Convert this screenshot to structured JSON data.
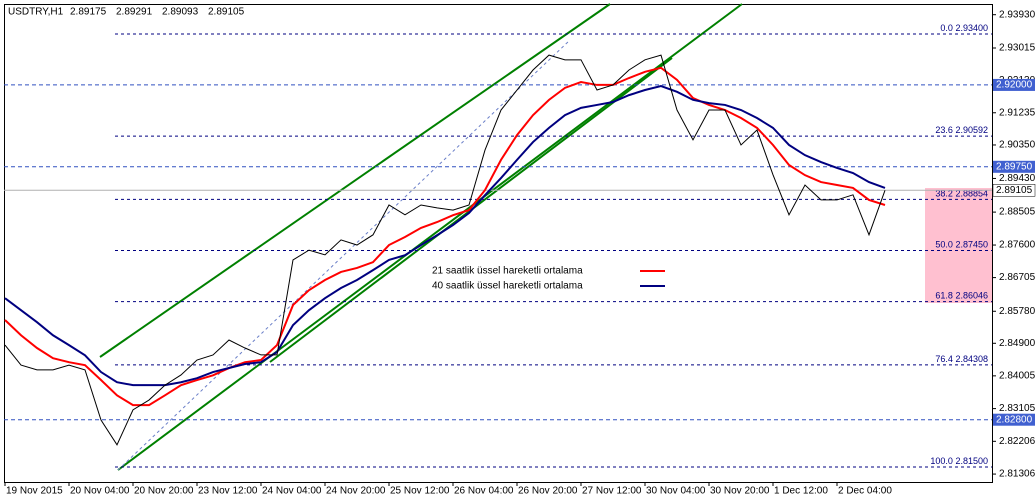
{
  "chart_data": {
    "type": "line",
    "title": "USDTRY,H1",
    "quote": [
      2.89175,
      2.89291,
      2.89093,
      2.89105
    ],
    "categories": [
      "19 Nov 2015",
      null,
      null,
      null,
      "20 Nov 04:00",
      null,
      null,
      null,
      "20 Nov 20:00",
      null,
      null,
      null,
      "23 Nov 12:00",
      null,
      null,
      null,
      "24 Nov 04:00",
      null,
      null,
      null,
      "24 Nov 20:00",
      null,
      null,
      null,
      "25 Nov 12:00",
      null,
      null,
      null,
      "26 Nov 04:00",
      null,
      null,
      null,
      "26 Nov 20:00",
      null,
      null,
      null,
      "27 Nov 12:00",
      null,
      null,
      null,
      "30 Nov 04:00",
      null,
      null,
      null,
      "30 Nov 20:00",
      null,
      null,
      null,
      "1 Dec 12:00",
      null,
      null,
      null,
      "2 Dec 04:00",
      null,
      null,
      null
    ],
    "values": [
      2.8485,
      2.843,
      2.8417,
      2.8417,
      2.843,
      2.8417,
      2.8279,
      2.8211,
      2.8307,
      2.8334,
      2.8375,
      2.8403,
      2.8444,
      2.8458,
      2.8499,
      2.8477,
      2.8458,
      2.8458,
      2.8719,
      2.8746,
      2.8733,
      2.8774,
      2.876,
      2.8788,
      2.887,
      2.8843,
      2.887,
      2.8862,
      2.8856,
      2.887,
      2.9021,
      2.9131,
      2.9186,
      2.9241,
      2.9282,
      2.9269,
      2.9269,
      2.9186,
      2.92,
      2.9241,
      2.9269,
      2.9282,
      2.9131,
      2.9049,
      2.9131,
      2.9131,
      2.9035,
      2.9076,
      2.8953,
      2.8843,
      2.8925,
      2.8884,
      2.8884,
      2.8898,
      2.8788,
      2.89105
    ],
    "color": "#000000",
    "series": [
      {
        "name": "21 saatlik üssel hareketli ortalama",
        "color": "#ff0000",
        "values": [
          2.8554,
          2.8512,
          2.8477,
          2.8449,
          2.8438,
          2.843,
          2.8389,
          2.8347,
          2.832,
          2.832,
          2.8347,
          2.8375,
          2.8389,
          2.8402,
          2.8422,
          2.8438,
          2.8444,
          2.8485,
          2.8595,
          2.8636,
          2.8664,
          2.8686,
          2.8697,
          2.8713,
          2.876,
          2.8782,
          2.8807,
          2.8823,
          2.8842,
          2.8856,
          2.8911,
          2.8994,
          2.9062,
          2.9117,
          2.9159,
          2.9192,
          2.9208,
          2.92,
          2.92,
          2.9219,
          2.9236,
          2.9247,
          2.9214,
          2.9164,
          2.9145,
          2.9131,
          2.9109,
          2.9082,
          2.9035,
          2.898,
          2.8952,
          2.8933,
          2.8925,
          2.8917,
          2.8884,
          2.887
        ]
      },
      {
        "name": "40 saatlik üssel hareketli ortalama",
        "color": "#000080",
        "values": [
          2.8614,
          2.8581,
          2.8548,
          2.8512,
          2.8485,
          2.8457,
          2.8411,
          2.8383,
          2.8375,
          2.8375,
          2.8375,
          2.8383,
          2.8394,
          2.8411,
          2.8422,
          2.8433,
          2.8438,
          2.8466,
          2.854,
          2.8581,
          2.8614,
          2.8642,
          2.8664,
          2.8691,
          2.8719,
          2.8732,
          2.876,
          2.8787,
          2.8815,
          2.8848,
          2.8897,
          2.8944,
          2.8994,
          2.9043,
          2.9082,
          2.9117,
          2.9137,
          2.9145,
          2.9153,
          2.9172,
          2.9186,
          2.9197,
          2.9181,
          2.9159,
          2.915,
          2.9145,
          2.9131,
          2.9109,
          2.9082,
          2.9035,
          2.9007,
          2.8988,
          2.8972,
          2.8958,
          2.8933,
          2.8917
        ]
      }
    ],
    "ylim": [
      2.81088,
      2.94224
    ],
    "yticks": [
      {
        "value": 2.9393,
        "label": "2.93930"
      },
      2.93015,
      {
        "value": 2.9213,
        "label": "2.92130"
      },
      2.91235,
      {
        "value": 2.9035,
        "label": "2.90350"
      },
      {
        "value": 2.8943,
        "label": "2.89430"
      },
      2.88505,
      {
        "value": 2.876,
        "label": "2.87600"
      },
      2.86705,
      {
        "value": 2.8578,
        "label": "2.85780"
      },
      {
        "value": 2.849,
        "label": "2.84900"
      },
      2.84005,
      2.83105,
      2.82206,
      2.81306
    ],
    "fib_levels": [
      {
        "ratio": "0.0",
        "price": {
          "value": 2.934,
          "label": "2.93400"
        }
      },
      {
        "ratio": "23.6",
        "price": 2.90592
      },
      {
        "ratio": "38.2",
        "price": 2.88854
      },
      {
        "ratio": "50.0",
        "price": {
          "value": 2.8745,
          "label": "2.87450"
        }
      },
      {
        "ratio": "61.8",
        "price": 2.86046
      },
      {
        "ratio": "76.4",
        "price": 2.84308
      },
      {
        "ratio": "100.0",
        "price": {
          "value": 2.815,
          "label": "2.81500"
        }
      }
    ],
    "price_lines": [
      {
        "value": 2.92,
        "label": "2.92000"
      },
      {
        "value": 2.8975,
        "label": "2.89750"
      },
      {
        "value": 2.828,
        "label": "2.82800"
      }
    ],
    "last_price": 2.89105
  }
}
